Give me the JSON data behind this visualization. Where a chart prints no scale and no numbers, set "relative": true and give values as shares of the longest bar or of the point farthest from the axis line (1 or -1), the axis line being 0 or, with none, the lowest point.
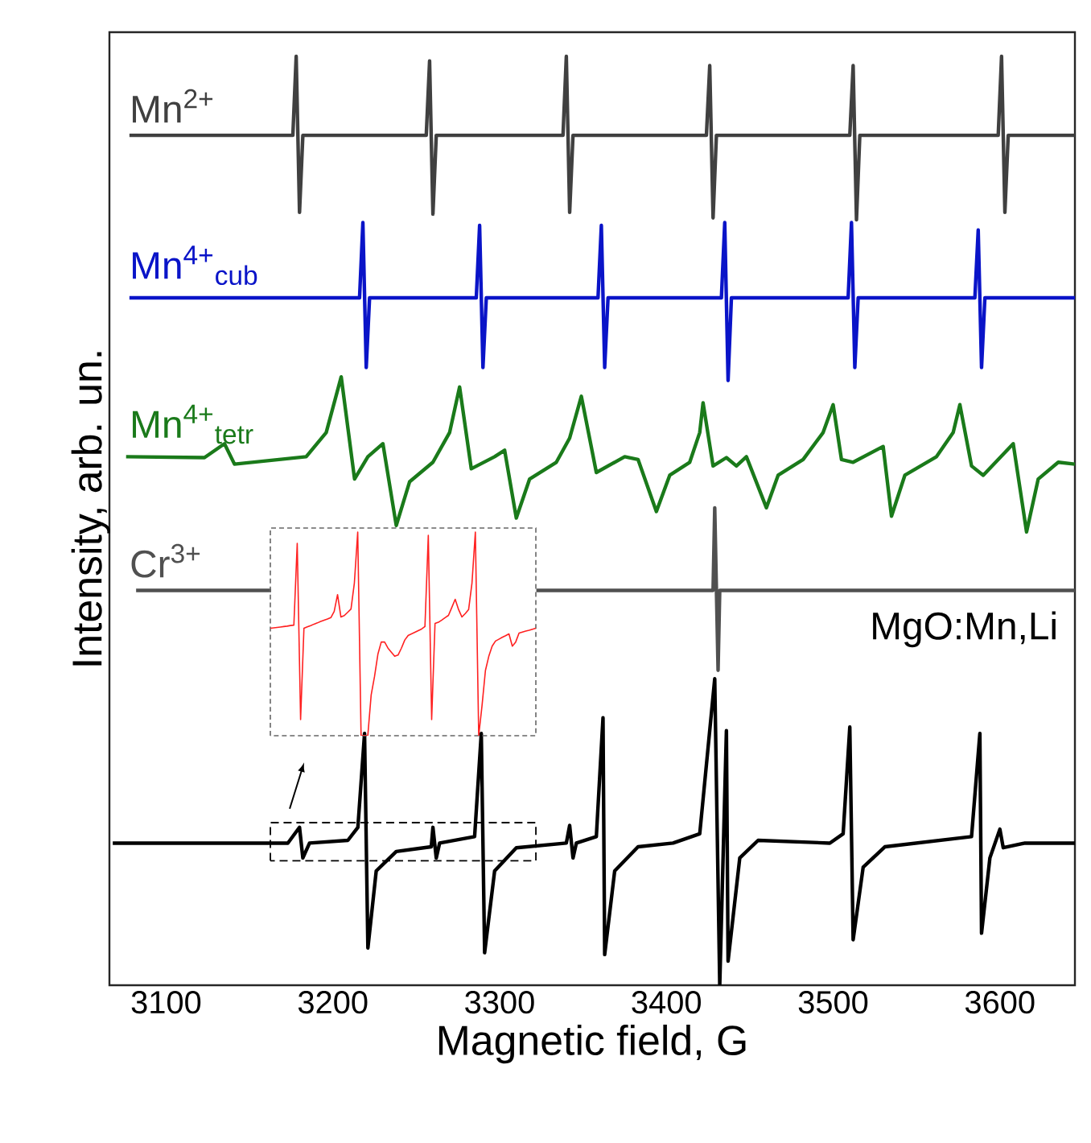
{
  "chart_data": [
    {
      "type": "line",
      "xlabel": "Magnetic field, G",
      "ylabel": "Intensity, arb. un.",
      "relative": true,
      "xlim": [
        3066,
        3645
      ],
      "xticks": [
        3100,
        3200,
        3300,
        3400,
        3500,
        3600
      ],
      "series": [
        {
          "name": "Mn$^{2+}$",
          "color": "#404040",
          "x": [
            3078,
            3176,
            3178,
            3180,
            3182,
            3256,
            3258,
            3260,
            3262,
            3338,
            3340,
            3342,
            3344,
            3424,
            3426,
            3428,
            3430,
            3510,
            3512,
            3514,
            3516,
            3599,
            3601,
            3603,
            3605,
            3645
          ],
          "values": [
            0.915,
            0.915,
            1.0,
            0.832,
            0.915,
            0.915,
            0.995,
            0.83,
            0.915,
            0.915,
            1.0,
            0.832,
            0.915,
            0.915,
            0.99,
            0.826,
            0.915,
            0.915,
            0.99,
            0.824,
            0.915,
            0.915,
            1.0,
            0.832,
            0.915,
            0.915
          ]
        },
        {
          "name": "Mn$^{4+}$$_{cub}$",
          "color": "#0a14c8",
          "x": [
            3078,
            3216,
            3218,
            3220,
            3222,
            3286,
            3288,
            3290,
            3292,
            3359,
            3361,
            3363,
            3365,
            3433,
            3435,
            3437,
            3439,
            3509,
            3511,
            3513,
            3515,
            3585,
            3587,
            3589,
            3591,
            3645
          ],
          "values": [
            0.74,
            0.74,
            0.821,
            0.665,
            0.74,
            0.74,
            0.818,
            0.665,
            0.74,
            0.74,
            0.818,
            0.665,
            0.74,
            0.74,
            0.821,
            0.651,
            0.74,
            0.74,
            0.821,
            0.665,
            0.74,
            0.74,
            0.813,
            0.665,
            0.74,
            0.74
          ]
        },
        {
          "name": "Mn$^{4+}$$_{tetr}$",
          "color": "#1a7a1a",
          "x": [
            3076,
            3123,
            3135,
            3141,
            3184,
            3196,
            3205,
            3213,
            3221,
            3230,
            3238,
            3246,
            3260,
            3270,
            3276,
            3283,
            3297,
            3303,
            3310,
            3318,
            3334,
            3342,
            3349,
            3358,
            3375,
            3383,
            3394,
            3402,
            3414,
            3420,
            3422,
            3428,
            3436,
            3442,
            3448,
            3460,
            3467,
            3482,
            3494,
            3500,
            3505,
            3512,
            3530,
            3535,
            3543,
            3562,
            3572,
            3576,
            3583,
            3590,
            3608,
            3616,
            3623,
            3635,
            3645
          ],
          "values": [
            0.569,
            0.568,
            0.583,
            0.561,
            0.569,
            0.595,
            0.655,
            0.545,
            0.569,
            0.583,
            0.495,
            0.542,
            0.563,
            0.595,
            0.644,
            0.556,
            0.569,
            0.576,
            0.503,
            0.545,
            0.563,
            0.589,
            0.634,
            0.552,
            0.569,
            0.566,
            0.51,
            0.549,
            0.563,
            0.595,
            0.627,
            0.559,
            0.568,
            0.559,
            0.569,
            0.514,
            0.549,
            0.566,
            0.595,
            0.625,
            0.566,
            0.563,
            0.58,
            0.505,
            0.549,
            0.569,
            0.595,
            0.625,
            0.559,
            0.549,
            0.583,
            0.488,
            0.545,
            0.563,
            0.561
          ]
        },
        {
          "name": "Cr$^{3+}$",
          "color": "#505050",
          "x": [
            3082,
            3163,
            3200,
            3322,
            3428,
            3429,
            3431,
            3432,
            3645
          ],
          "values": [
            0.425,
            0.425,
            null,
            0.425,
            0.425,
            0.514,
            0.339,
            0.425,
            0.425
          ]
        },
        {
          "name": "MgO:Mn,Li",
          "color": "#000000",
          "x": [
            3068,
            3173,
            3180,
            3182,
            3186,
            3209,
            3215,
            3219,
            3221,
            3226,
            3238,
            3259,
            3260,
            3262,
            3264,
            3285,
            3289,
            3291,
            3297,
            3310,
            3340,
            3342,
            3344,
            3346,
            3358,
            3362,
            3363,
            3369,
            3383,
            3404,
            3420,
            3429,
            3432,
            3436,
            3437,
            3444,
            3455,
            3498,
            3506,
            3510,
            3512,
            3518,
            3531,
            3583,
            3588,
            3589,
            3594,
            3600,
            3602,
            3615,
            3645
          ],
          "values": [
            0.153,
            0.153,
            0.17,
            0.137,
            0.153,
            0.156,
            0.17,
            0.271,
            0.04,
            0.123,
            0.144,
            0.149,
            0.17,
            0.137,
            0.153,
            0.16,
            0.271,
            0.035,
            0.123,
            0.148,
            0.153,
            0.172,
            0.137,
            0.153,
            0.16,
            0.288,
            0.033,
            0.123,
            0.149,
            0.153,
            0.163,
            0.33,
            0.0,
            0.274,
            0.026,
            0.137,
            0.156,
            0.153,
            0.163,
            0.278,
            0.049,
            0.127,
            0.149,
            0.16,
            0.271,
            0.056,
            0.137,
            0.168,
            0.148,
            0.153,
            0.153
          ]
        }
      ]
    },
    {
      "type": "line",
      "relative": true,
      "categories": [
        null,
        null,
        null,
        null,
        null,
        null,
        null,
        null,
        null,
        null,
        null,
        null,
        null,
        null,
        null,
        null,
        null,
        null,
        null,
        null,
        null,
        null,
        null,
        null,
        null,
        null,
        null,
        null,
        null,
        null,
        null,
        null,
        null,
        null,
        null,
        null,
        null,
        null,
        null,
        null,
        null,
        null,
        null,
        null,
        null,
        null,
        null,
        null,
        null,
        null,
        null,
        null,
        null,
        null,
        null,
        null,
        null,
        null,
        null,
        null,
        null,
        null,
        null,
        null,
        null,
        null,
        null,
        null,
        null,
        null,
        null,
        null,
        null,
        null,
        null,
        null,
        null,
        null,
        null,
        null
      ],
      "series": [
        {
          "color": "#ff2020",
          "values": [
            0.528,
            0.53,
            0.532,
            0.534,
            0.536,
            0.538,
            0.541,
            0.543,
            0.945,
            0.079,
            0.528,
            0.535,
            0.541,
            0.548,
            0.554,
            0.561,
            0.567,
            0.573,
            0.58,
            0.61,
            0.693,
            0.583,
            0.59,
            0.606,
            0.622,
            0.75,
            1.0,
            0,
            0,
            0,
            0.2,
            0.291,
            0.4,
            0.46,
            0.46,
            0.43,
            0.41,
            0.39,
            0.396,
            0.43,
            0.47,
            0.492,
            0.5,
            0.508,
            0.516,
            0.524,
            0.536,
            0.984,
            0.079,
            0.551,
            0.557,
            0.568,
            0.58,
            0.591,
            0.63,
            0.67,
            0.62,
            0.583,
            0.6,
            0.62,
            0.75,
            1.0,
            0,
            0.15,
            0.32,
            0.39,
            0.44,
            0.465,
            0.474,
            0.483,
            0.491,
            0.5,
            0.44,
            0.46,
            0.504,
            0.509,
            0.514,
            0.518,
            0.523,
            0.528
          ]
        }
      ]
    }
  ]
}
